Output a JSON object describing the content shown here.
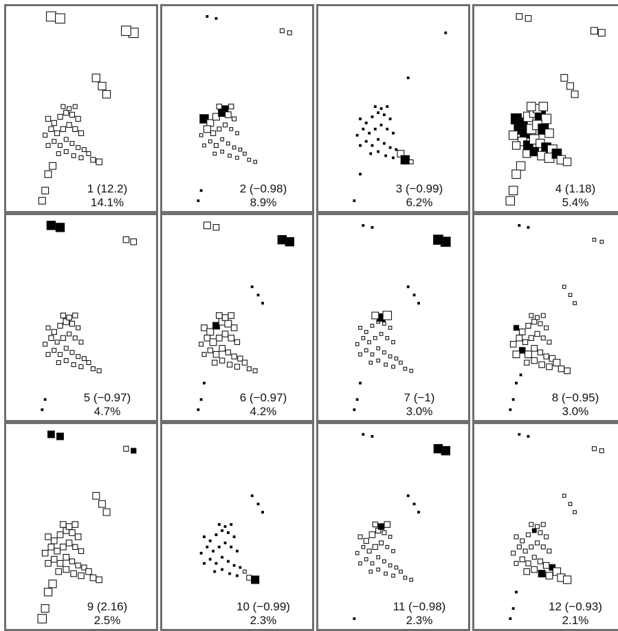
{
  "colors": {
    "border": "#6f6f6f",
    "marker_stroke": "#111111",
    "filled": "#000000",
    "background": "#ffffff"
  },
  "chart_data": {
    "type": "scatter",
    "layout": "3 rows x 4 columns of small-multiple scatter panels",
    "grid": false,
    "panels": [
      {
        "id": "1",
        "label": "1 (12.2)",
        "percent": "14.1%"
      },
      {
        "id": "2",
        "label": "2 (−0.98)",
        "percent": "8.9%"
      },
      {
        "id": "3",
        "label": "3 (−0.99)",
        "percent": "6.2%"
      },
      {
        "id": "4",
        "label": "4 (1.18)",
        "percent": "5.4%"
      },
      {
        "id": "5",
        "label": "5 (−0.97)",
        "percent": "4.7%"
      },
      {
        "id": "6",
        "label": "6 (−0.97)",
        "percent": "4.2%"
      },
      {
        "id": "7",
        "label": "7 (−1)",
        "percent": "3.0%"
      },
      {
        "id": "8",
        "label": "8 (−0.95)",
        "percent": "3.0%"
      },
      {
        "id": "9",
        "label": "9 (2.16)",
        "percent": "2.5%"
      },
      {
        "id": "10",
        "label": "10 (−0.99)",
        "percent": "2.3%"
      },
      {
        "id": "11",
        "label": "11 (−0.98)",
        "percent": "2.3%"
      },
      {
        "id": "12",
        "label": "12 (−0.93)",
        "percent": "2.1%"
      }
    ],
    "points": [
      [
        0.3,
        0.05
      ],
      [
        0.36,
        0.06
      ],
      [
        0.85,
        0.13
      ],
      [
        0.8,
        0.12
      ],
      [
        0.6,
        0.35
      ],
      [
        0.64,
        0.39
      ],
      [
        0.67,
        0.43
      ],
      [
        0.31,
        0.78
      ],
      [
        0.28,
        0.82
      ],
      [
        0.26,
        0.9
      ],
      [
        0.24,
        0.95
      ],
      [
        0.28,
        0.55
      ],
      [
        0.32,
        0.57
      ],
      [
        0.36,
        0.54
      ],
      [
        0.4,
        0.52
      ],
      [
        0.44,
        0.53
      ],
      [
        0.48,
        0.55
      ],
      [
        0.3,
        0.6
      ],
      [
        0.34,
        0.62
      ],
      [
        0.38,
        0.6
      ],
      [
        0.42,
        0.58
      ],
      [
        0.46,
        0.6
      ],
      [
        0.5,
        0.62
      ],
      [
        0.32,
        0.66
      ],
      [
        0.36,
        0.68
      ],
      [
        0.4,
        0.65
      ],
      [
        0.44,
        0.67
      ],
      [
        0.48,
        0.69
      ],
      [
        0.52,
        0.7
      ],
      [
        0.35,
        0.72
      ],
      [
        0.4,
        0.71
      ],
      [
        0.45,
        0.73
      ],
      [
        0.5,
        0.74
      ],
      [
        0.55,
        0.72
      ],
      [
        0.58,
        0.75
      ],
      [
        0.62,
        0.76
      ],
      [
        0.42,
        0.5
      ],
      [
        0.46,
        0.49
      ],
      [
        0.38,
        0.49
      ],
      [
        0.26,
        0.63
      ],
      [
        0.28,
        0.68
      ]
    ],
    "weights": [
      [
        0.9,
        0.9,
        0.9,
        0.9,
        0.7,
        0.7,
        0.7,
        0.6,
        0.6,
        0.6,
        0.6,
        0.4,
        0.4,
        0.4,
        0.4,
        0.4,
        0.4,
        0.4,
        0.4,
        0.4,
        0.4,
        0.4,
        0.4,
        0.3,
        0.3,
        0.3,
        0.3,
        0.3,
        0.3,
        0.3,
        0.3,
        0.3,
        0.3,
        0.3,
        0.4,
        0.5,
        0.3,
        0.3,
        0.3,
        0.3,
        0.3
      ],
      [
        0.1,
        0.1,
        0.3,
        0.3,
        0.0,
        0.0,
        0.0,
        0.0,
        0.0,
        0.1,
        0.1,
        0.8,
        0.6,
        0.6,
        0.7,
        0.5,
        0.3,
        0.6,
        0.4,
        0.3,
        0.3,
        0.2,
        0.2,
        0.2,
        0.3,
        0.2,
        0.2,
        0.2,
        0.2,
        0.2,
        0.2,
        0.2,
        0.2,
        0.2,
        0.2,
        0.2,
        0.5,
        0.4,
        0.4,
        0.2,
        0.2
      ],
      [
        0.0,
        0.0,
        0.1,
        0.0,
        0.1,
        0.0,
        0.0,
        0.0,
        0.1,
        0.0,
        0.1,
        0.1,
        0.1,
        0.1,
        0.1,
        0.1,
        0.1,
        0.1,
        0.1,
        0.1,
        0.1,
        0.1,
        0.1,
        0.1,
        0.1,
        0.1,
        0.1,
        0.1,
        0.1,
        0.1,
        0.1,
        0.1,
        0.1,
        0.6,
        0.8,
        0.3,
        0.1,
        0.1,
        0.1,
        0.1,
        0.1
      ],
      [
        0.5,
        0.5,
        0.6,
        0.6,
        0.6,
        0.6,
        0.6,
        0.8,
        0.8,
        0.8,
        0.8,
        1.0,
        1.0,
        0.9,
        0.9,
        1.0,
        0.9,
        1.0,
        1.0,
        0.9,
        0.9,
        1.0,
        0.8,
        0.8,
        0.9,
        0.9,
        0.8,
        0.9,
        0.9,
        0.7,
        0.8,
        0.8,
        0.9,
        0.9,
        0.8,
        0.7,
        0.8,
        0.8,
        0.8,
        0.8,
        0.7
      ],
      [
        0.8,
        0.8,
        0.5,
        0.5,
        0.0,
        0.0,
        0.0,
        0.0,
        0.0,
        0.1,
        0.1,
        0.3,
        0.4,
        0.4,
        0.5,
        0.4,
        0.3,
        0.4,
        0.3,
        0.4,
        0.3,
        0.3,
        0.3,
        0.3,
        0.3,
        0.3,
        0.3,
        0.3,
        0.3,
        0.3,
        0.3,
        0.3,
        0.3,
        0.3,
        0.3,
        0.3,
        0.4,
        0.4,
        0.4,
        0.3,
        0.3
      ],
      [
        0.6,
        0.5,
        0.8,
        0.8,
        0.1,
        0.1,
        0.1,
        0.0,
        0.1,
        0.1,
        0.1,
        0.5,
        0.6,
        0.6,
        0.6,
        0.6,
        0.5,
        0.5,
        0.6,
        0.5,
        0.5,
        0.5,
        0.4,
        0.4,
        0.5,
        0.5,
        0.4,
        0.4,
        0.4,
        0.4,
        0.4,
        0.4,
        0.4,
        0.4,
        0.3,
        0.3,
        0.5,
        0.5,
        0.5,
        0.3,
        0.3
      ],
      [
        0.1,
        0.1,
        0.9,
        0.9,
        0.1,
        0.1,
        0.1,
        0.0,
        0.1,
        0.1,
        0.1,
        0.2,
        0.2,
        0.2,
        0.2,
        0.2,
        0.2,
        0.2,
        0.2,
        0.2,
        0.2,
        0.2,
        0.2,
        0.2,
        0.2,
        0.2,
        0.2,
        0.2,
        0.2,
        0.2,
        0.2,
        0.2,
        0.2,
        0.2,
        0.2,
        0.2,
        0.7,
        0.8,
        0.6,
        0.2,
        0.2
      ],
      [
        0.1,
        0.1,
        0.2,
        0.2,
        0.2,
        0.2,
        0.2,
        0.1,
        0.1,
        0.1,
        0.1,
        0.4,
        0.5,
        0.4,
        0.4,
        0.3,
        0.3,
        0.5,
        0.4,
        0.4,
        0.4,
        0.3,
        0.3,
        0.5,
        0.6,
        0.5,
        0.4,
        0.4,
        0.5,
        0.4,
        0.5,
        0.5,
        0.5,
        0.6,
        0.5,
        0.5,
        0.3,
        0.3,
        0.3,
        0.5,
        0.6
      ],
      [
        0.6,
        0.6,
        0.4,
        0.4,
        0.6,
        0.6,
        0.6,
        0.7,
        0.7,
        0.7,
        0.8,
        0.5,
        0.5,
        0.5,
        0.5,
        0.5,
        0.5,
        0.5,
        0.5,
        0.5,
        0.5,
        0.4,
        0.4,
        0.5,
        0.5,
        0.5,
        0.4,
        0.4,
        0.4,
        0.5,
        0.5,
        0.5,
        0.5,
        0.5,
        0.5,
        0.5,
        0.5,
        0.5,
        0.5,
        0.5,
        0.5
      ],
      [
        0.0,
        0.0,
        0.0,
        0.0,
        0.1,
        0.1,
        0.1,
        0.0,
        0.0,
        0.0,
        0.0,
        0.1,
        0.1,
        0.1,
        0.1,
        0.1,
        0.1,
        0.1,
        0.1,
        0.1,
        0.1,
        0.1,
        0.1,
        0.1,
        0.1,
        0.1,
        0.1,
        0.1,
        0.1,
        0.1,
        0.1,
        0.1,
        0.1,
        0.2,
        0.4,
        0.7,
        0.1,
        0.1,
        0.1,
        0.1,
        0.1
      ],
      [
        0.1,
        0.1,
        0.8,
        0.8,
        0.1,
        0.1,
        0.1,
        0.0,
        0.0,
        0.0,
        0.1,
        0.3,
        0.4,
        0.5,
        0.4,
        0.3,
        0.2,
        0.2,
        0.3,
        0.4,
        0.3,
        0.2,
        0.2,
        0.2,
        0.2,
        0.2,
        0.2,
        0.2,
        0.2,
        0.2,
        0.2,
        0.2,
        0.2,
        0.2,
        0.2,
        0.2,
        0.5,
        0.5,
        0.4,
        0.2,
        0.2
      ],
      [
        0.1,
        0.1,
        0.3,
        0.3,
        0.2,
        0.2,
        0.2,
        0.0,
        0.1,
        0.1,
        0.1,
        0.3,
        0.3,
        0.3,
        0.3,
        0.3,
        0.3,
        0.3,
        0.3,
        0.3,
        0.3,
        0.3,
        0.3,
        0.4,
        0.4,
        0.3,
        0.4,
        0.5,
        0.5,
        0.5,
        0.5,
        0.6,
        0.6,
        0.7,
        0.7,
        0.7,
        0.3,
        0.3,
        0.3,
        0.3,
        0.3
      ]
    ],
    "filled": [
      [],
      [
        11,
        14,
        36
      ],
      [
        34
      ],
      [
        11,
        12,
        15,
        17,
        18,
        21,
        24,
        27,
        30,
        33
      ],
      [
        0,
        1
      ],
      [
        2,
        3,
        13
      ],
      [
        2,
        3,
        36
      ],
      [
        11,
        23
      ],
      [
        0,
        1,
        2
      ],
      [
        35
      ],
      [
        2,
        3,
        36
      ],
      [
        14,
        28,
        31
      ]
    ]
  }
}
